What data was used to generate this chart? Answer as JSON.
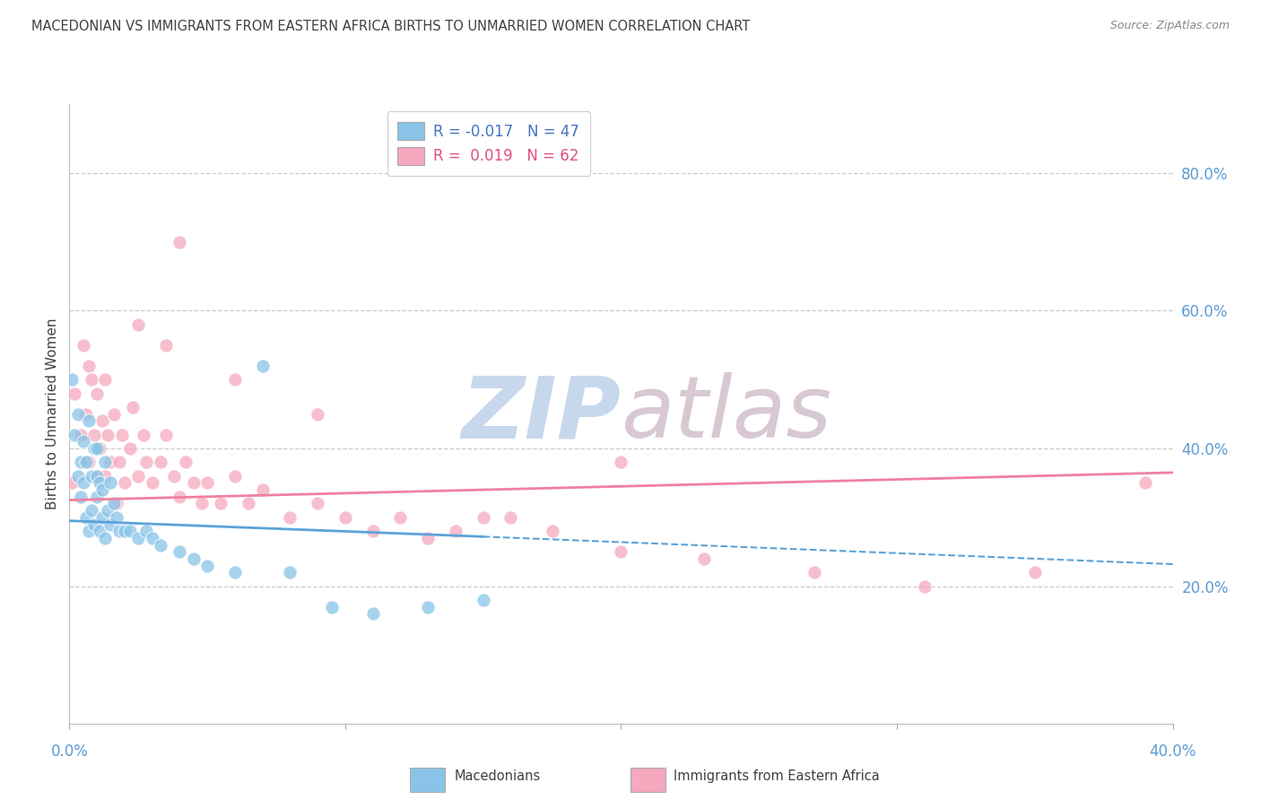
{
  "title": "MACEDONIAN VS IMMIGRANTS FROM EASTERN AFRICA BIRTHS TO UNMARRIED WOMEN CORRELATION CHART",
  "source": "Source: ZipAtlas.com",
  "ylabel": "Births to Unmarried Women",
  "ylabel_right_ticks": [
    "20.0%",
    "40.0%",
    "60.0%",
    "80.0%"
  ],
  "ylabel_right_vals": [
    0.2,
    0.4,
    0.6,
    0.8
  ],
  "xlim": [
    0.0,
    0.4
  ],
  "ylim": [
    0.0,
    0.9
  ],
  "macedonian_color": "#89C4E8",
  "eastern_africa_color": "#F5A8BE",
  "macedonian_line_color": "#5BA3D9",
  "eastern_africa_line_color": "#F080A0",
  "legend_label_1": "R = -0.017   N = 47",
  "legend_label_2": "R =  0.019   N = 62",
  "legend_color_1": "#89C4E8",
  "legend_color_2": "#F5A8BE",
  "watermark_zip": "ZIP",
  "watermark_atlas": "atlas",
  "macedonian_R": -0.017,
  "eastern_africa_R": 0.019,
  "mac_line_x0": 0.0,
  "mac_line_x1": 0.15,
  "mac_line_y0": 0.295,
  "mac_line_y1": 0.272,
  "mac_line_dash_x0": 0.15,
  "mac_line_dash_x1": 0.4,
  "mac_line_dash_y0": 0.272,
  "mac_line_dash_y1": 0.232,
  "east_line_x0": 0.0,
  "east_line_x1": 0.4,
  "east_line_y0": 0.325,
  "east_line_y1": 0.365,
  "macedonian_scatter_x": [
    0.002,
    0.003,
    0.003,
    0.004,
    0.004,
    0.005,
    0.005,
    0.006,
    0.006,
    0.007,
    0.007,
    0.008,
    0.008,
    0.009,
    0.009,
    0.01,
    0.01,
    0.01,
    0.011,
    0.011,
    0.012,
    0.012,
    0.013,
    0.013,
    0.014,
    0.015,
    0.015,
    0.016,
    0.017,
    0.018,
    0.02,
    0.022,
    0.025,
    0.028,
    0.03,
    0.033,
    0.04,
    0.045,
    0.05,
    0.06,
    0.07,
    0.08,
    0.095,
    0.11,
    0.13,
    0.15,
    0.001
  ],
  "macedonian_scatter_y": [
    0.42,
    0.36,
    0.45,
    0.38,
    0.33,
    0.35,
    0.41,
    0.3,
    0.38,
    0.28,
    0.44,
    0.31,
    0.36,
    0.29,
    0.4,
    0.33,
    0.36,
    0.4,
    0.28,
    0.35,
    0.3,
    0.34,
    0.27,
    0.38,
    0.31,
    0.29,
    0.35,
    0.32,
    0.3,
    0.28,
    0.28,
    0.28,
    0.27,
    0.28,
    0.27,
    0.26,
    0.25,
    0.24,
    0.23,
    0.22,
    0.52,
    0.22,
    0.17,
    0.16,
    0.17,
    0.18,
    0.5
  ],
  "eastern_africa_scatter_x": [
    0.001,
    0.002,
    0.004,
    0.005,
    0.006,
    0.007,
    0.007,
    0.008,
    0.009,
    0.01,
    0.01,
    0.011,
    0.012,
    0.013,
    0.013,
    0.014,
    0.015,
    0.016,
    0.017,
    0.018,
    0.019,
    0.02,
    0.022,
    0.023,
    0.025,
    0.027,
    0.028,
    0.03,
    0.033,
    0.035,
    0.038,
    0.04,
    0.042,
    0.045,
    0.048,
    0.05,
    0.055,
    0.06,
    0.065,
    0.07,
    0.08,
    0.09,
    0.1,
    0.11,
    0.12,
    0.13,
    0.14,
    0.16,
    0.175,
    0.2,
    0.23,
    0.27,
    0.31,
    0.35,
    0.39,
    0.025,
    0.035,
    0.06,
    0.09,
    0.15,
    0.2,
    0.04
  ],
  "eastern_africa_scatter_y": [
    0.35,
    0.48,
    0.42,
    0.55,
    0.45,
    0.38,
    0.52,
    0.5,
    0.42,
    0.36,
    0.48,
    0.4,
    0.44,
    0.36,
    0.5,
    0.42,
    0.38,
    0.45,
    0.32,
    0.38,
    0.42,
    0.35,
    0.4,
    0.46,
    0.36,
    0.42,
    0.38,
    0.35,
    0.38,
    0.42,
    0.36,
    0.33,
    0.38,
    0.35,
    0.32,
    0.35,
    0.32,
    0.36,
    0.32,
    0.34,
    0.3,
    0.32,
    0.3,
    0.28,
    0.3,
    0.27,
    0.28,
    0.3,
    0.28,
    0.25,
    0.24,
    0.22,
    0.2,
    0.22,
    0.35,
    0.58,
    0.55,
    0.5,
    0.45,
    0.3,
    0.38,
    0.7
  ],
  "background_color": "#FFFFFF",
  "plot_bg_color": "#FFFFFF",
  "title_color": "#404040",
  "tick_color": "#5B9BD5"
}
